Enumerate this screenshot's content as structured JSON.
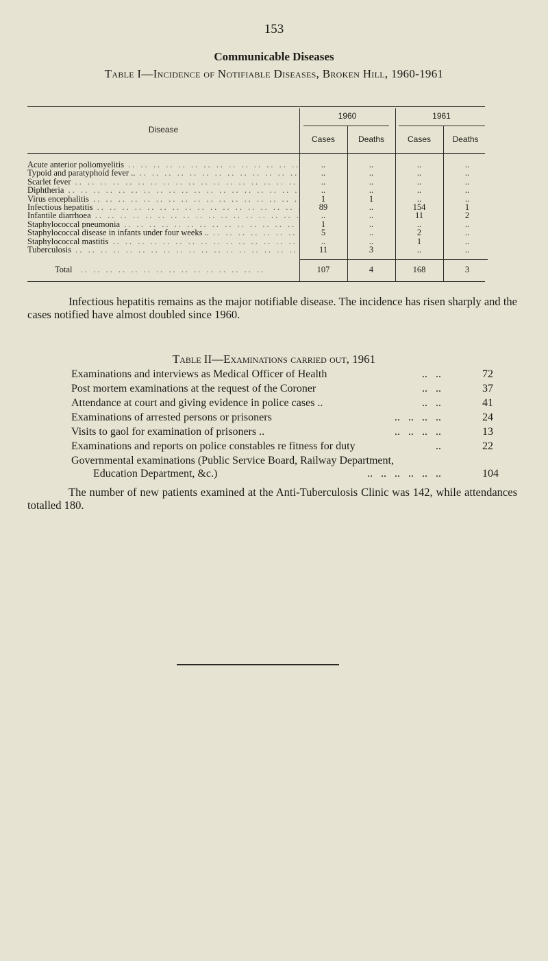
{
  "page_number": "153",
  "heading": "Communicable Diseases",
  "table1": {
    "title": "Table I—Incidence of Notifiable Diseases, Broken Hill, 1960-1961",
    "disease_header": "Disease",
    "years": [
      "1960",
      "1961"
    ],
    "subheaders": [
      "Cases",
      "Deaths",
      "Cases",
      "Deaths"
    ],
    "rows": [
      {
        "disease": "Acute anterior poliomyelitis",
        "values": [
          "..",
          "..",
          "..",
          ".."
        ]
      },
      {
        "disease": "Typoid and paratyphoid fever ..",
        "values": [
          "..",
          "..",
          "..",
          ".."
        ]
      },
      {
        "disease": "Scarlet fever",
        "values": [
          "..",
          "..",
          "..",
          ".."
        ]
      },
      {
        "disease": "Diphtheria",
        "values": [
          "..",
          "..",
          "..",
          ".."
        ]
      },
      {
        "disease": "Virus encephalitis",
        "values": [
          "1",
          "1",
          "..",
          ".."
        ]
      },
      {
        "disease": "Infectious hepatitis",
        "values": [
          "89",
          "..",
          "154",
          "1"
        ]
      },
      {
        "disease": "Infantile diarrhoea",
        "values": [
          "..",
          "..",
          "11",
          "2"
        ]
      },
      {
        "disease": "Staphylococcal pneumonia",
        "values": [
          "1",
          "..",
          "..",
          ".."
        ]
      },
      {
        "disease": "Staphylococcal disease in infants under four weeks ..",
        "values": [
          "5",
          "..",
          "2",
          ".."
        ]
      },
      {
        "disease": "Staphylococcal mastitis",
        "values": [
          "..",
          "..",
          "1",
          ".."
        ]
      },
      {
        "disease": "Tuberculosis",
        "values": [
          "11",
          "3",
          "..",
          ".."
        ]
      }
    ],
    "total": {
      "label": "Total",
      "values": [
        "107",
        "4",
        "168",
        "3"
      ]
    }
  },
  "paragraph1": "Infectious hepatitis remains as the major notifiable disease. The incidence has risen sharply and the cases notified have almost doubled since 1960.",
  "table2": {
    "title": "Table II—Examinations carried out, 1961",
    "rows": [
      {
        "label": "Examinations and interviews as Medical Officer of Health",
        "leaders": "..   ..",
        "value": "72"
      },
      {
        "label": "Post mortem examinations at the request of the Coroner",
        "leaders": "..   ..",
        "value": "37"
      },
      {
        "label": "Attendance at court and giving evidence in police cases ..",
        "leaders": "..   ..",
        "value": "41"
      },
      {
        "label": "Examinations of arrested persons or prisoners",
        "leaders": "..   ..   ..   ..",
        "value": "24"
      },
      {
        "label": "Visits to gaol for examination of prisoners ..",
        "leaders": "..   ..   ..   ..",
        "value": "13"
      },
      {
        "label": "Examinations and reports on police constables re fitness for duty",
        "leaders": "..",
        "value": "22"
      },
      {
        "label": "Governmental examinations (Public Service Board, Railway Department,",
        "label2": "Education Department, &c.)",
        "leaders": "..   ..   ..   ..   ..   ..",
        "value": "104"
      }
    ]
  },
  "paragraph2": "The number of new patients examined at the Anti-Tuberculosis Clinic was 142, while attendances totalled 180."
}
